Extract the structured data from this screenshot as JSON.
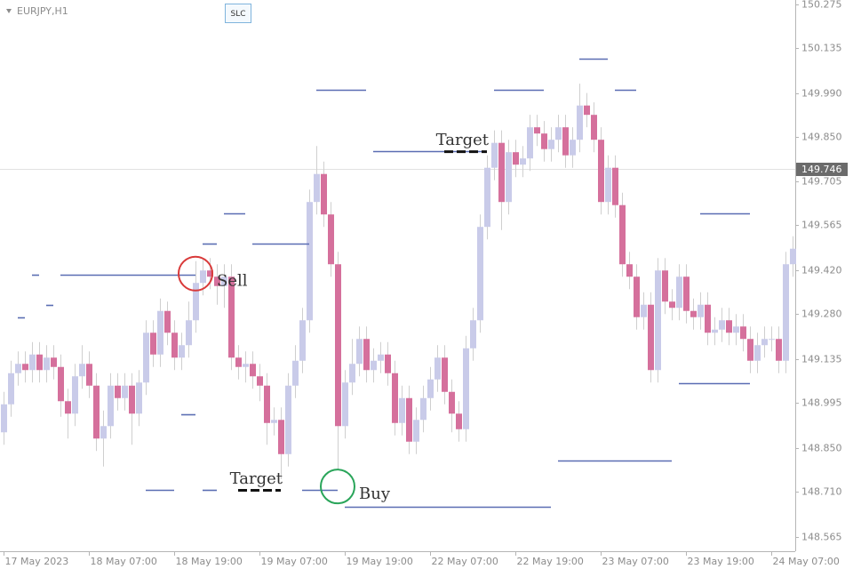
{
  "chart_data": {
    "type": "candlestick",
    "title": "EURJPY,H1",
    "button": "SLC",
    "up_color": "#c9cbe9",
    "down_color": "#d5709c",
    "level_color": "#5a6db3",
    "ylim": [
      148.518,
      150.289
    ],
    "yticks": [
      150.275,
      150.135,
      {
        "value": 149.99,
        "label": "149.990"
      },
      {
        "value": 149.85,
        "label": "149.850"
      },
      149.705,
      149.565,
      {
        "value": 149.42,
        "label": "149.420"
      },
      {
        "value": 149.28,
        "label": "149.280"
      },
      149.135,
      148.995,
      {
        "value": 148.85,
        "label": "148.850"
      },
      {
        "value": 148.71,
        "label": "148.710"
      },
      148.565
    ],
    "xticks": [
      {
        "value": 0,
        "label": "17 May 2023"
      },
      {
        "value": 12,
        "label": "18 May 07:00"
      },
      {
        "value": 24,
        "label": "18 May 19:00"
      },
      {
        "value": 36,
        "label": "19 May 07:00"
      },
      {
        "value": 48,
        "label": "19 May 19:00"
      },
      {
        "value": 60,
        "label": "22 May 07:00"
      },
      {
        "value": 72,
        "label": "22 May 19:00"
      },
      {
        "value": 84,
        "label": "23 May 07:00"
      },
      {
        "value": 96,
        "label": "23 May 19:00"
      },
      {
        "value": 108,
        "label": "24 May 07:00"
      }
    ],
    "current_price": 149.746,
    "open": [
      148.9,
      148.99,
      149.09,
      149.12,
      149.1,
      149.15,
      149.1,
      149.14,
      149.11,
      149.0,
      148.96,
      149.08,
      149.12,
      149.05,
      148.88,
      148.92,
      149.05,
      149.01,
      149.05,
      148.96,
      149.06,
      149.22,
      149.15,
      149.29,
      149.22,
      149.14,
      149.18,
      149.26,
      149.38,
      149.42,
      149.4,
      149.37,
      149.4,
      149.14,
      149.11,
      149.12,
      149.08,
      149.05,
      148.93,
      148.94,
      148.83,
      149.05,
      149.13,
      149.26,
      149.64,
      149.73,
      149.6,
      149.44,
      148.92,
      149.06,
      149.12,
      149.2,
      149.1,
      149.13,
      149.15,
      149.09,
      148.93,
      149.01,
      148.87,
      148.94,
      149.01,
      149.07,
      149.14,
      149.03,
      148.96,
      148.91,
      149.17,
      149.26,
      149.56,
      149.75,
      149.83,
      149.64,
      149.8,
      149.76,
      149.78,
      149.88,
      149.86,
      149.81,
      149.84,
      149.88,
      149.79,
      149.84,
      149.95,
      149.92,
      149.84,
      149.64,
      149.75,
      149.63,
      149.44,
      149.4,
      149.27,
      149.31,
      149.1,
      149.42,
      149.32,
      149.3,
      149.4,
      149.29,
      149.27,
      149.31,
      149.22,
      149.23,
      149.26,
      149.22,
      149.24,
      149.2,
      149.13,
      149.18,
      149.2,
      149.2,
      149.13,
      149.44
    ],
    "high": [
      149.03,
      149.13,
      149.16,
      149.16,
      149.19,
      149.19,
      149.18,
      149.18,
      149.15,
      149.04,
      149.12,
      149.18,
      149.16,
      149.09,
      148.97,
      149.09,
      149.09,
      149.09,
      149.09,
      149.1,
      149.26,
      149.26,
      149.33,
      149.32,
      149.26,
      149.22,
      149.32,
      149.45,
      149.46,
      149.46,
      149.44,
      149.44,
      149.44,
      149.18,
      149.16,
      149.16,
      149.12,
      149.09,
      148.98,
      148.98,
      149.09,
      149.18,
      149.3,
      149.68,
      149.82,
      149.77,
      149.64,
      149.48,
      149.1,
      149.2,
      149.24,
      149.24,
      149.17,
      149.19,
      149.19,
      149.13,
      149.05,
      149.05,
      148.98,
      149.05,
      149.11,
      149.18,
      149.18,
      149.07,
      149.0,
      149.21,
      149.3,
      149.6,
      149.79,
      149.87,
      149.87,
      149.84,
      149.84,
      149.82,
      149.92,
      149.92,
      149.9,
      149.88,
      149.92,
      149.92,
      149.88,
      150.02,
      149.99,
      149.96,
      149.88,
      149.79,
      149.79,
      149.67,
      149.48,
      149.44,
      149.35,
      149.35,
      149.46,
      149.46,
      149.36,
      149.44,
      149.44,
      149.33,
      149.35,
      149.35,
      149.27,
      149.3,
      149.3,
      149.28,
      149.28,
      149.24,
      149.22,
      149.24,
      149.24,
      149.24,
      149.48,
      149.53
    ],
    "low": [
      148.86,
      148.95,
      149.05,
      149.06,
      149.06,
      149.06,
      149.06,
      149.07,
      148.95,
      148.88,
      148.92,
      149.04,
      149.01,
      148.84,
      148.79,
      148.88,
      148.97,
      148.97,
      148.86,
      148.92,
      149.02,
      149.11,
      149.11,
      149.18,
      149.1,
      149.1,
      149.14,
      149.22,
      149.34,
      149.36,
      149.31,
      149.3,
      149.1,
      149.07,
      149.06,
      149.04,
      149.0,
      148.86,
      148.89,
      148.75,
      148.79,
      149.01,
      149.09,
      149.22,
      149.6,
      149.56,
      149.4,
      148.78,
      148.88,
      149.02,
      149.08,
      149.06,
      149.06,
      149.09,
      149.05,
      148.89,
      148.89,
      148.83,
      148.83,
      148.9,
      148.97,
      149.03,
      148.99,
      148.9,
      148.87,
      148.87,
      149.13,
      149.22,
      149.52,
      149.71,
      149.55,
      149.6,
      149.72,
      149.72,
      149.74,
      149.82,
      149.77,
      149.77,
      149.8,
      149.75,
      149.75,
      149.8,
      149.88,
      149.8,
      149.6,
      149.6,
      149.59,
      149.4,
      149.36,
      149.23,
      149.23,
      149.06,
      149.06,
      149.28,
      149.26,
      149.26,
      149.25,
      149.23,
      149.23,
      149.18,
      149.18,
      149.19,
      149.18,
      149.18,
      149.16,
      149.09,
      149.09,
      149.14,
      149.16,
      149.09,
      149.09,
      149.4
    ],
    "close": [
      148.99,
      149.09,
      149.12,
      149.1,
      149.15,
      149.1,
      149.14,
      149.11,
      149.0,
      148.96,
      149.08,
      149.12,
      149.05,
      148.88,
      148.92,
      149.05,
      149.01,
      149.05,
      148.96,
      149.06,
      149.22,
      149.15,
      149.29,
      149.22,
      149.14,
      149.18,
      149.26,
      149.38,
      149.42,
      149.4,
      149.37,
      149.4,
      149.14,
      149.11,
      149.12,
      149.08,
      149.05,
      148.93,
      148.94,
      148.83,
      149.05,
      149.13,
      149.26,
      149.64,
      149.73,
      149.6,
      149.44,
      148.92,
      149.06,
      149.12,
      149.2,
      149.1,
      149.13,
      149.15,
      149.09,
      148.93,
      149.01,
      148.87,
      148.94,
      149.01,
      149.07,
      149.14,
      149.03,
      148.96,
      148.91,
      149.17,
      149.26,
      149.56,
      149.75,
      149.83,
      149.64,
      149.8,
      149.76,
      149.78,
      149.88,
      149.86,
      149.81,
      149.84,
      149.88,
      149.79,
      149.84,
      149.95,
      149.92,
      149.84,
      149.64,
      149.75,
      149.63,
      149.44,
      149.4,
      149.27,
      149.31,
      149.1,
      149.42,
      149.32,
      149.3,
      149.4,
      149.29,
      149.27,
      149.31,
      149.22,
      149.23,
      149.26,
      149.22,
      149.24,
      149.2,
      149.13,
      149.18,
      149.2,
      149.2,
      149.13,
      149.44,
      149.49
    ],
    "levels": [
      {
        "from": 8,
        "to": 27,
        "price": 149.406
      },
      {
        "from": 44,
        "to": 51,
        "price": 150.0
      },
      {
        "from": 69,
        "to": 76,
        "price": 150.0
      },
      {
        "from": 81,
        "to": 85,
        "price": 150.1
      },
      {
        "from": 86,
        "to": 89,
        "price": 150.0
      },
      {
        "from": 52,
        "to": 68,
        "price": 149.803
      },
      {
        "from": 31,
        "to": 34,
        "price": 149.603
      },
      {
        "from": 98,
        "to": 105,
        "price": 149.603
      },
      {
        "from": 28,
        "to": 30,
        "price": 149.506
      },
      {
        "from": 35,
        "to": 43,
        "price": 149.506
      },
      {
        "from": 95,
        "to": 105,
        "price": 149.058
      },
      {
        "from": 25,
        "to": 27,
        "price": 148.958
      },
      {
        "from": 78,
        "to": 94,
        "price": 148.809
      },
      {
        "from": 20,
        "to": 24,
        "price": 148.715
      },
      {
        "from": 28,
        "to": 30,
        "price": 148.715
      },
      {
        "from": 42,
        "to": 47,
        "price": 148.715
      },
      {
        "from": 48,
        "to": 77,
        "price": 148.661
      },
      {
        "from": 4,
        "to": 5,
        "price": 149.406
      },
      {
        "from": 6,
        "to": 7,
        "price": 149.31
      },
      {
        "from": 2,
        "to": 3,
        "price": 149.268
      }
    ],
    "annotations": [
      {
        "text": "Sell",
        "x": 27,
        "price": 149.41,
        "color": "#d93a3a"
      },
      {
        "text": "Buy",
        "x": 47,
        "price": 148.726,
        "color": "#2aa55a"
      },
      {
        "text": "Target",
        "x": 68,
        "price": 149.803
      },
      {
        "text": "Target",
        "x": 39,
        "price": 148.715
      }
    ]
  }
}
